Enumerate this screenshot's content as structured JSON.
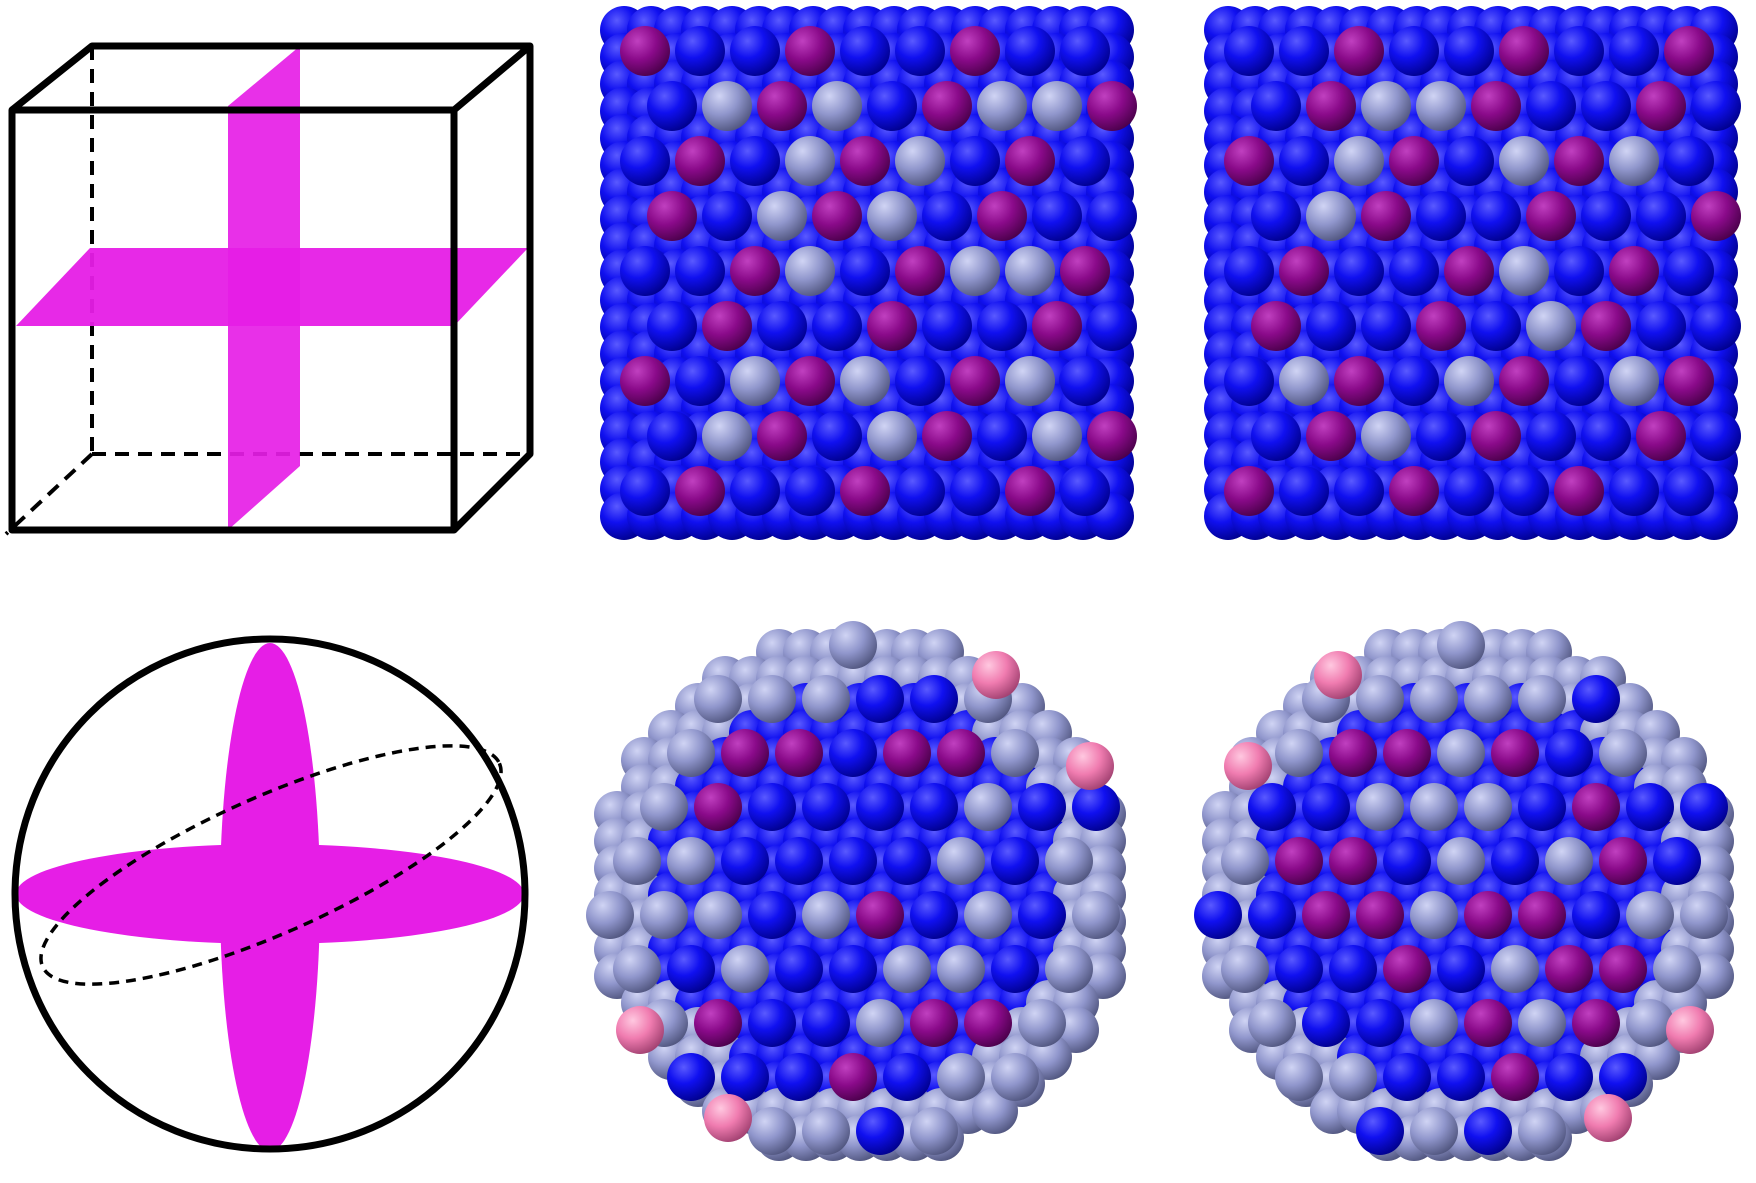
{
  "figure": {
    "description_panels": [
      "cube-schematic",
      "cube-cluster-view-1",
      "cube-cluster-view-2",
      "sphere-schematic",
      "sphere-cluster-view-1",
      "sphere-cluster-view-2"
    ],
    "colors": {
      "background": "#ffffff",
      "outline": "#000000",
      "plane": "#e61ee6",
      "atom_blue": "#0a0af0",
      "atom_purple": "#8c0a8c",
      "atom_lavender": "#8c91c8",
      "atom_pink": "#f082b4"
    },
    "atom_types": [
      "blue",
      "purple",
      "lavender",
      "pink"
    ]
  }
}
